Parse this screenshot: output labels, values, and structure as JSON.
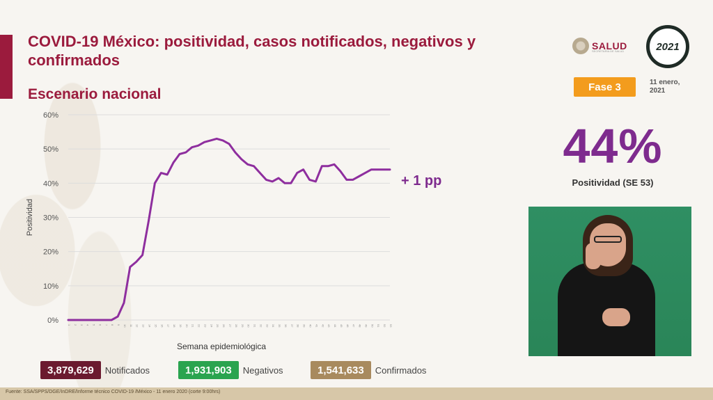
{
  "header": {
    "title": "COVID-19 México: positividad, casos notificados, negativos y confirmados",
    "subtitle": "Escenario nacional",
    "logo_text": "SALUD",
    "logo_small": "SECRETARÍA DE SALUD",
    "badge_year": "2021",
    "phase": "Fase 3",
    "date": "11 enero, 2021"
  },
  "highlight": {
    "value": "44%",
    "label": "Positividad (SE 53)",
    "change": "+ 1 pp"
  },
  "totals": {
    "notificados_value": "3,879,629",
    "notificados_label": "Notificados",
    "negativos_value": "1,931,903",
    "negativos_label": "Negativos",
    "confirmados_value": "1,541,633",
    "confirmados_label": "Confirmados"
  },
  "footer": {
    "source": "Fuente: SSA/SPPS/DGE/InDRE/Informe técnico COVID-19 /México - 11 enero 2020 (corte 9:00hrs)"
  },
  "colors": {
    "brand": "#9b1b3d",
    "line": "#8e2e9e",
    "notificados": "#6b1a2f",
    "negativos": "#2aa44f",
    "confirmados": "#a88a5e",
    "phase": "#f39c1d"
  },
  "chart_data": {
    "type": "line",
    "title": "",
    "xlabel": "Semana epidemiológica",
    "ylabel": "Positividad",
    "ylim": [
      0,
      60
    ],
    "yticks": [
      "0%",
      "10%",
      "20%",
      "30%",
      "40%",
      "50%",
      "60%"
    ],
    "grid": true,
    "categories": [
      "1",
      "2",
      "3",
      "4",
      "5",
      "6",
      "7",
      "8",
      "9",
      "10",
      "11",
      "12",
      "13",
      "14",
      "15",
      "16",
      "17",
      "18",
      "19",
      "20",
      "21",
      "22",
      "23",
      "24",
      "25",
      "26",
      "27",
      "28",
      "29",
      "30",
      "31",
      "32",
      "33",
      "34",
      "35",
      "36",
      "37",
      "38",
      "39",
      "40",
      "41",
      "42",
      "43",
      "44",
      "45",
      "46",
      "47",
      "48",
      "49",
      "50",
      "51",
      "52",
      "53"
    ],
    "series": [
      {
        "values": [
          0,
          0,
          0,
          0,
          0,
          0,
          0,
          0,
          1,
          5,
          15.5,
          17,
          19,
          29,
          40,
          43,
          42.5,
          46,
          48.5,
          49,
          50.5,
          51,
          52,
          52.5,
          53,
          52.5,
          51.5,
          49,
          47,
          45.5,
          45,
          43,
          41,
          40.5,
          41.5,
          40,
          40,
          43,
          44,
          41,
          40.5,
          45,
          45,
          45.5,
          43.5,
          41,
          41,
          42,
          43,
          44,
          44,
          44,
          44
        ]
      }
    ]
  }
}
